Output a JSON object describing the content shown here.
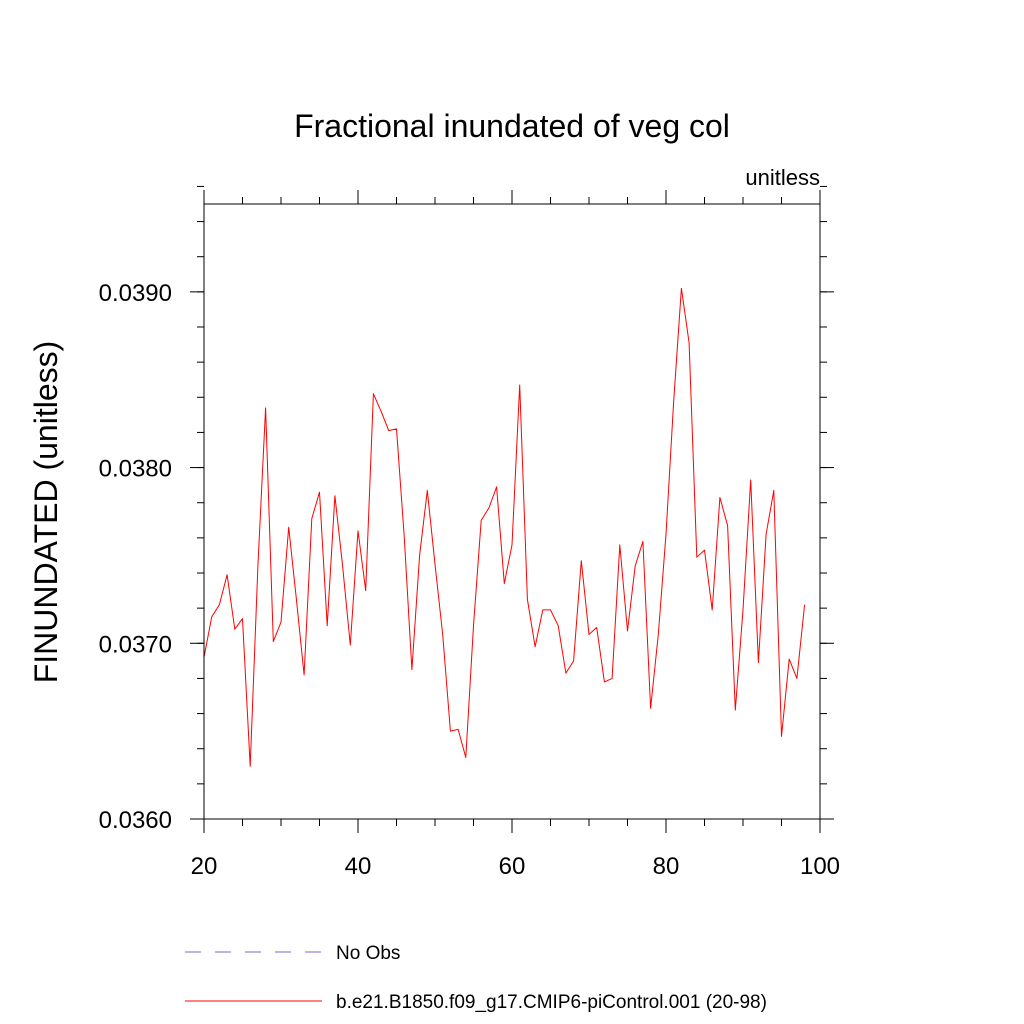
{
  "chart_data": {
    "type": "line",
    "title": "Fractional inundated of veg col",
    "units_label": "unitless",
    "ylabel": "FINUNDATED  (unitless)",
    "xlabel": "",
    "xlim": [
      20,
      100
    ],
    "ylim": [
      0.036,
      0.0395
    ],
    "x_ticks": [
      20,
      40,
      60,
      80,
      100
    ],
    "x_tick_labels": [
      "20",
      "40",
      "60",
      "80",
      "100"
    ],
    "y_ticks": [
      0.036,
      0.037,
      0.038,
      0.039
    ],
    "y_tick_labels": [
      "0.0360",
      "0.0370",
      "0.0380",
      "0.0390"
    ],
    "x_minor_step": 5,
    "y_minor_step": 0.0002,
    "grid": false,
    "legend_position": "bottom-left",
    "series": [
      {
        "name": "No Obs",
        "color": "#7b68c8",
        "dash": true,
        "x": [],
        "values": []
      },
      {
        "name": "b.e21.B1850.f09_g17.CMIP6-piControl.001 (20-98)",
        "color": "#ff0000",
        "dash": false,
        "x": [
          20,
          21,
          22,
          23,
          24,
          25,
          26,
          27,
          28,
          29,
          30,
          31,
          32,
          33,
          34,
          35,
          36,
          37,
          38,
          39,
          40,
          41,
          42,
          43,
          44,
          45,
          46,
          47,
          48,
          49,
          50,
          51,
          52,
          53,
          54,
          55,
          56,
          57,
          58,
          59,
          60,
          61,
          62,
          63,
          64,
          65,
          66,
          67,
          68,
          69,
          70,
          71,
          72,
          73,
          74,
          75,
          76,
          77,
          78,
          79,
          80,
          81,
          82,
          83,
          84,
          85,
          86,
          87,
          88,
          89,
          90,
          91,
          92,
          93,
          94,
          95,
          96,
          97,
          98
        ],
        "values": [
          0.03692,
          0.03715,
          0.03722,
          0.03739,
          0.03708,
          0.03714,
          0.0363,
          0.03744,
          0.03834,
          0.03701,
          0.03712,
          0.03766,
          0.03725,
          0.03682,
          0.03771,
          0.03786,
          0.0371,
          0.03784,
          0.03744,
          0.03699,
          0.03764,
          0.0373,
          0.03842,
          0.03832,
          0.03821,
          0.03822,
          0.03761,
          0.03685,
          0.0375,
          0.03787,
          0.03745,
          0.03705,
          0.0365,
          0.03651,
          0.03635,
          0.0371,
          0.0377,
          0.03777,
          0.03789,
          0.03734,
          0.03756,
          0.03847,
          0.03725,
          0.03698,
          0.03719,
          0.03719,
          0.0371,
          0.03683,
          0.0369,
          0.03747,
          0.03705,
          0.03709,
          0.03678,
          0.0368,
          0.03756,
          0.03707,
          0.03744,
          0.03758,
          0.03663,
          0.03705,
          0.03762,
          0.03838,
          0.03902,
          0.03871,
          0.03749,
          0.03753,
          0.03719,
          0.03783,
          0.03767,
          0.03662,
          0.03719,
          0.03793,
          0.03689,
          0.03762,
          0.03787,
          0.03647,
          0.03691,
          0.0368,
          0.03722
        ]
      }
    ]
  }
}
